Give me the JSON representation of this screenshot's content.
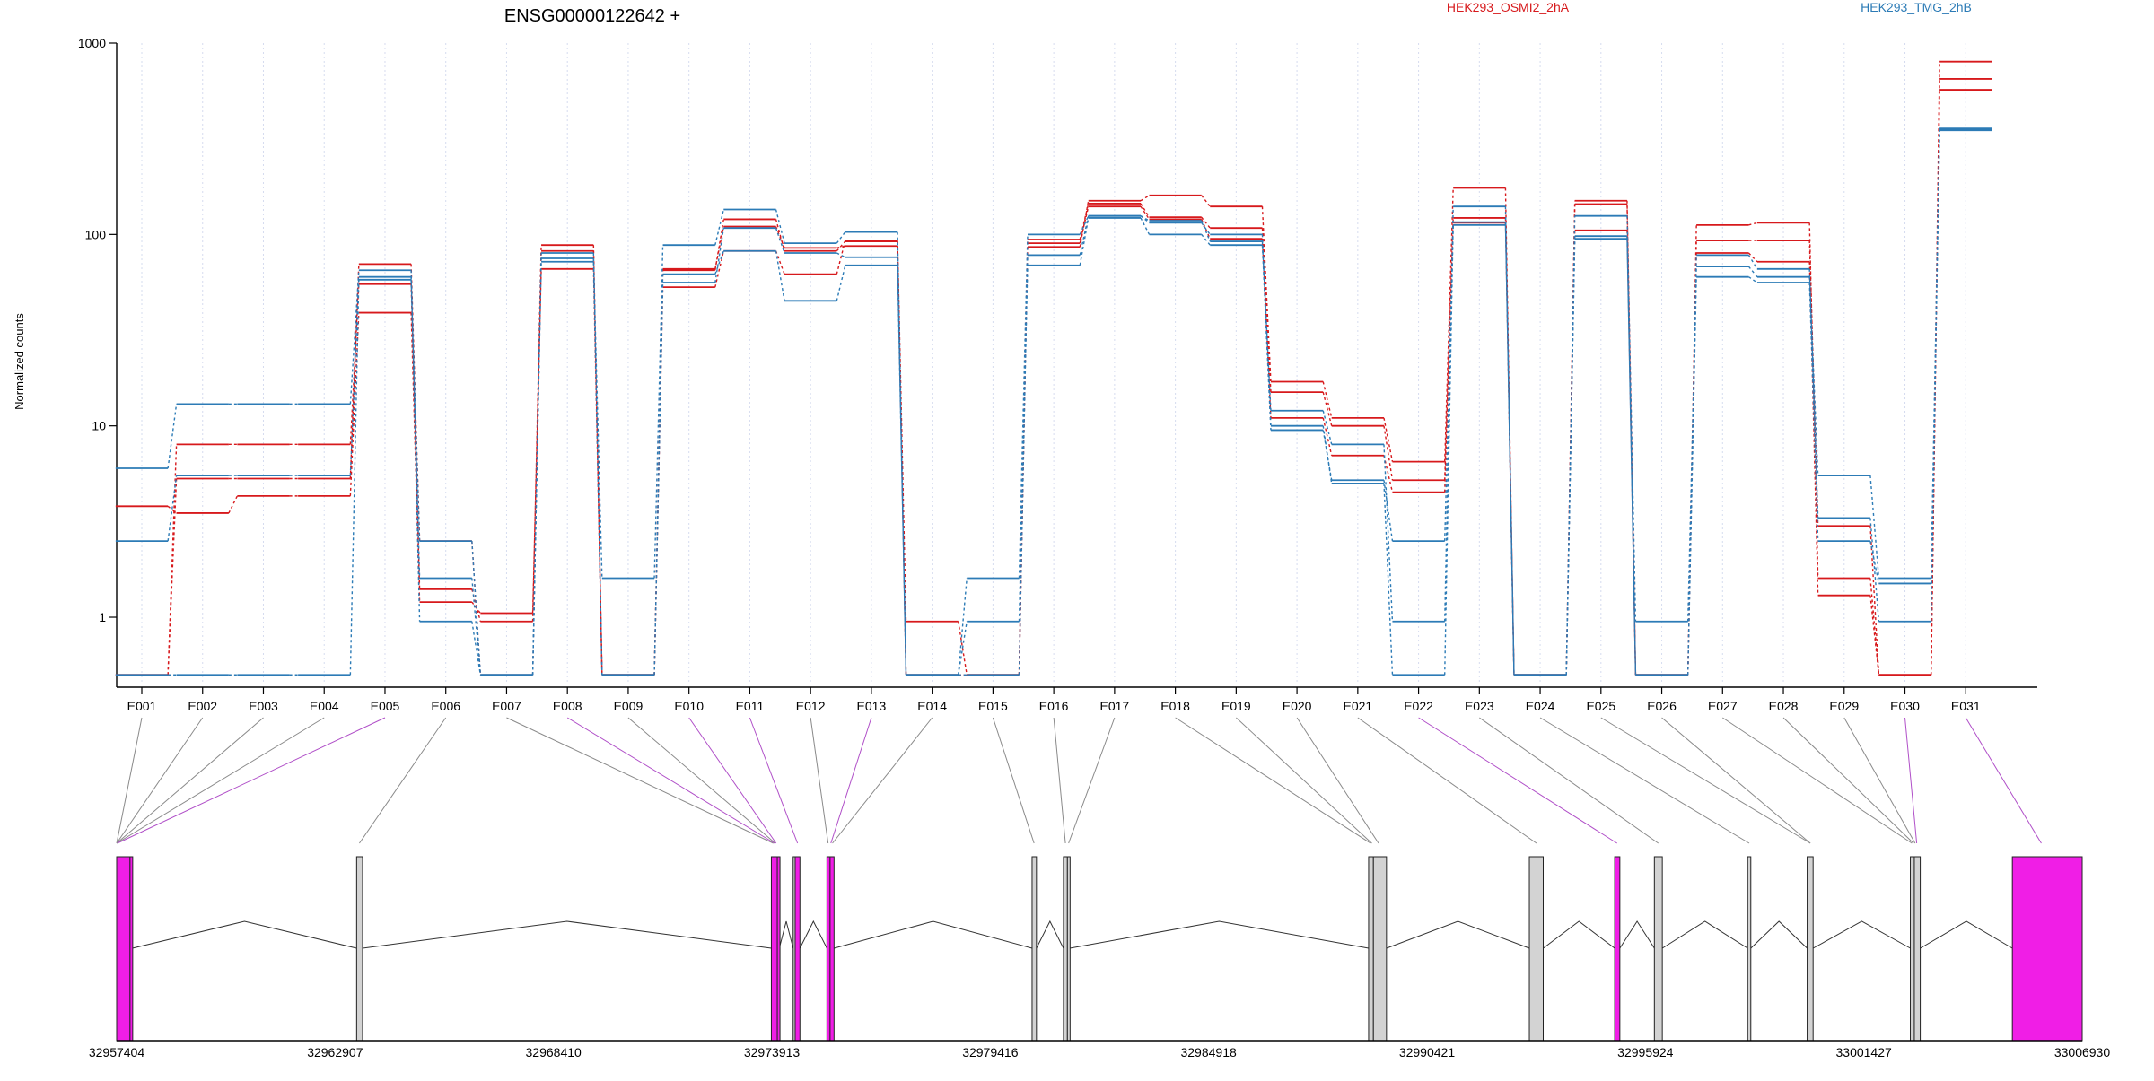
{
  "chart_data": {
    "type": "line",
    "title": "ENSG00000122642 +",
    "ylabel": "Normalized counts",
    "yscale": "log",
    "ylim": [
      0.45,
      1000
    ],
    "yticks": [
      "1",
      "10",
      "100",
      "1000"
    ],
    "ytick_values": [
      1,
      10,
      100,
      1000
    ],
    "grid": "vertical dotted",
    "legend_placement": "top-right",
    "categories": [
      "E001",
      "E002",
      "E003",
      "E004",
      "E005",
      "E006",
      "E007",
      "E008",
      "E009",
      "E010",
      "E011",
      "E012",
      "E013",
      "E014",
      "E015",
      "E016",
      "E017",
      "E018",
      "E019",
      "E020",
      "E021",
      "E022",
      "E023",
      "E024",
      "E025",
      "E026",
      "E027",
      "E028",
      "E029",
      "E030",
      "E031"
    ],
    "conditions": [
      {
        "name": "HEK293_OSMI2_2hA",
        "color": "#d7191c"
      },
      {
        "name": "HEK293_TMG_2hB",
        "color": "#2c7bb6"
      }
    ],
    "series": [
      {
        "condition": 0,
        "values": [
          3.8,
          3.5,
          4.3,
          4.3,
          39,
          1.2,
          1.05,
          66,
          0.5,
          53,
          82,
          62,
          93,
          0.95,
          0.5,
          86,
          150,
          160,
          140,
          17,
          11,
          6.5,
          175,
          0.5,
          150,
          0.5,
          112,
          115,
          1.6,
          0.5,
          800
        ]
      },
      {
        "condition": 0,
        "values": [
          0.5,
          8,
          8,
          8,
          55,
          1.4,
          0.95,
          88,
          0.5,
          66,
          110,
          85,
          87,
          0.5,
          0.5,
          94,
          145,
          123,
          108,
          15,
          10,
          5.2,
          122,
          0.5,
          144,
          0.5,
          93,
          93,
          3,
          0.5,
          650
        ]
      },
      {
        "condition": 0,
        "values": [
          0.5,
          5.3,
          5.3,
          5.3,
          70,
          2.5,
          0.5,
          82,
          0.5,
          65,
          120,
          82,
          92,
          0.5,
          0.5,
          90,
          140,
          120,
          95,
          11,
          7,
          4.5,
          115,
          0.5,
          105,
          0.5,
          80,
          72,
          1.3,
          0.5,
          570
        ]
      },
      {
        "condition": 1,
        "values": [
          6,
          13,
          13,
          13,
          65,
          0.95,
          0.5,
          72,
          1.6,
          88,
          135,
          90,
          103,
          0.5,
          1.6,
          100,
          125,
          118,
          92,
          12,
          8,
          0.95,
          140,
          0.5,
          125,
          0.95,
          68,
          60,
          5.5,
          1.6,
          358
        ]
      },
      {
        "condition": 1,
        "values": [
          2.5,
          5.5,
          5.5,
          5.5,
          60,
          1.6,
          0.5,
          75,
          0.5,
          62,
          82,
          45,
          69,
          0.5,
          0.95,
          69,
          122,
          100,
          88,
          9.5,
          5.2,
          2.5,
          112,
          0.5,
          98,
          0.5,
          60,
          56,
          2.5,
          1.5,
          350
        ]
      },
      {
        "condition": 1,
        "values": [
          0.5,
          0.5,
          0.5,
          0.5,
          58,
          2.5,
          0.5,
          80,
          0.5,
          56,
          108,
          80,
          76,
          0.5,
          0.5,
          78,
          125,
          115,
          100,
          10,
          5,
          0.5,
          116,
          0.5,
          95,
          0.5,
          78,
          66,
          3.3,
          0.95,
          355
        ]
      }
    ],
    "genome_axis": {
      "min": 32957404,
      "max": 33006930,
      "tick_labels": [
        "32957404",
        "32962907",
        "32968410",
        "32973913",
        "32979416",
        "32984918",
        "32990421",
        "32995924",
        "33001427",
        "33006930"
      ],
      "tick_values": [
        32957404,
        32962907,
        32968410,
        32973913,
        32979416,
        32984918,
        32990421,
        32995924,
        33001427,
        33006930
      ]
    },
    "exon_blocks": [
      {
        "exon": "E001",
        "start": 32957404,
        "end": 32957740,
        "highlight": true
      },
      {
        "exon": "E005",
        "start": 32957740,
        "end": 32957800,
        "highlight": true
      },
      {
        "exon": "E006",
        "start": 32963450,
        "end": 32963600,
        "highlight": false
      },
      {
        "exon": "E007",
        "start": 32973900,
        "end": 32974050,
        "highlight": true
      },
      {
        "exon": "E008",
        "start": 32974050,
        "end": 32974100,
        "highlight": true
      },
      {
        "exon": "E009",
        "start": 32974450,
        "end": 32974500,
        "highlight": false
      },
      {
        "exon": "E010",
        "start": 32974500,
        "end": 32974620,
        "highlight": true
      },
      {
        "exon": "E012",
        "start": 32975300,
        "end": 32975380,
        "highlight": true
      },
      {
        "exon": "E013",
        "start": 32975380,
        "end": 32975480,
        "highlight": true
      },
      {
        "exon": "E015",
        "start": 32980470,
        "end": 32980580,
        "highlight": false
      },
      {
        "exon": "E016",
        "start": 32981260,
        "end": 32981360,
        "highlight": false
      },
      {
        "exon": "E017",
        "start": 32981360,
        "end": 32981420,
        "highlight": false
      },
      {
        "exon": "E018",
        "start": 32988950,
        "end": 32989070,
        "highlight": false
      },
      {
        "exon": "E020",
        "start": 32989070,
        "end": 32989400,
        "highlight": false
      },
      {
        "exon": "E021",
        "start": 32993000,
        "end": 32993350,
        "highlight": false
      },
      {
        "exon": "E022",
        "start": 32995150,
        "end": 32995280,
        "highlight": true
      },
      {
        "exon": "E023",
        "start": 32996150,
        "end": 32996350,
        "highlight": false
      },
      {
        "exon": "E025",
        "start": 32998500,
        "end": 32998580,
        "highlight": false
      },
      {
        "exon": "E027",
        "start": 33000000,
        "end": 33000150,
        "highlight": false
      },
      {
        "exon": "E028",
        "start": 33002600,
        "end": 33002700,
        "highlight": false
      },
      {
        "exon": "E029",
        "start": 33002700,
        "end": 33002850,
        "highlight": false
      },
      {
        "exon": "E031",
        "start": 33005170,
        "end": 33006930,
        "highlight": true
      }
    ],
    "exon_links": [
      {
        "exon": "E001",
        "to": 32957404,
        "highlight": false
      },
      {
        "exon": "E002",
        "to": 32957404,
        "highlight": false
      },
      {
        "exon": "E003",
        "to": 32957404,
        "highlight": false
      },
      {
        "exon": "E004",
        "to": 32957404,
        "highlight": false
      },
      {
        "exon": "E005",
        "to": 32957420,
        "highlight": true
      },
      {
        "exon": "E006",
        "to": 32963520,
        "highlight": false
      },
      {
        "exon": "E007",
        "to": 32973950,
        "highlight": false
      },
      {
        "exon": "E008",
        "to": 32973980,
        "highlight": true
      },
      {
        "exon": "E009",
        "to": 32974000,
        "highlight": false
      },
      {
        "exon": "E010",
        "to": 32974020,
        "highlight": true
      },
      {
        "exon": "E011",
        "to": 32974560,
        "highlight": true
      },
      {
        "exon": "E012",
        "to": 32975330,
        "highlight": false
      },
      {
        "exon": "E013",
        "to": 32975400,
        "highlight": true
      },
      {
        "exon": "E014",
        "to": 32975440,
        "highlight": false
      },
      {
        "exon": "E015",
        "to": 32980520,
        "highlight": false
      },
      {
        "exon": "E016",
        "to": 32981310,
        "highlight": false
      },
      {
        "exon": "E017",
        "to": 32981390,
        "highlight": false
      },
      {
        "exon": "E018",
        "to": 32989000,
        "highlight": false
      },
      {
        "exon": "E019",
        "to": 32989030,
        "highlight": false
      },
      {
        "exon": "E020",
        "to": 32989200,
        "highlight": false
      },
      {
        "exon": "E021",
        "to": 32993180,
        "highlight": false
      },
      {
        "exon": "E022",
        "to": 32995210,
        "highlight": true
      },
      {
        "exon": "E023",
        "to": 32996250,
        "highlight": false
      },
      {
        "exon": "E024",
        "to": 32998540,
        "highlight": false
      },
      {
        "exon": "E025",
        "to": 33000080,
        "highlight": false
      },
      {
        "exon": "E026",
        "to": 33000080,
        "highlight": false
      },
      {
        "exon": "E027",
        "to": 33002640,
        "highlight": false
      },
      {
        "exon": "E028",
        "to": 33002680,
        "highlight": false
      },
      {
        "exon": "E029",
        "to": 33002720,
        "highlight": false
      },
      {
        "exon": "E030",
        "to": 33002760,
        "highlight": true
      },
      {
        "exon": "E031",
        "to": 33005900,
        "highlight": true
      }
    ]
  }
}
